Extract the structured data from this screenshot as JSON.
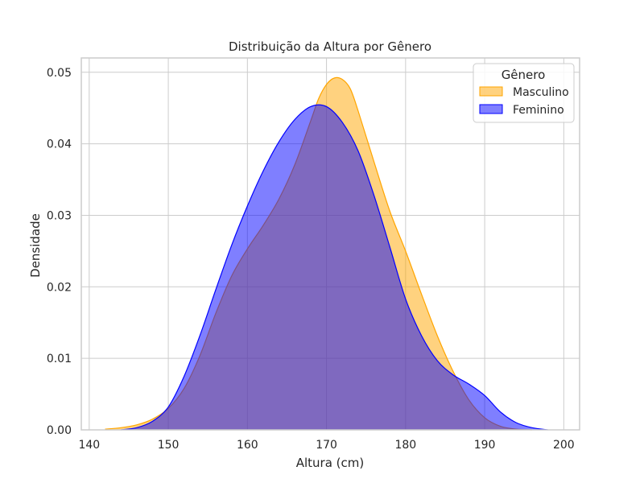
{
  "chart_data": {
    "type": "area",
    "title": "Distribuição da Altura por Gênero",
    "xlabel": "Altura (cm)",
    "ylabel": "Densidade",
    "xlim": [
      139,
      202
    ],
    "ylim": [
      0,
      0.052
    ],
    "xticks": [
      140,
      150,
      160,
      170,
      180,
      190,
      200
    ],
    "yticks": [
      0.0,
      0.01,
      0.02,
      0.03,
      0.04,
      0.05
    ],
    "xtick_labels": [
      "140",
      "150",
      "160",
      "170",
      "180",
      "190",
      "200"
    ],
    "ytick_labels": [
      "0.00",
      "0.01",
      "0.02",
      "0.03",
      "0.04",
      "0.05"
    ],
    "grid": true,
    "legend_placement": "top-right",
    "legend_title": "Gênero",
    "series": [
      {
        "name": "Masculino",
        "fill": "#ffa500",
        "fill_opacity": 0.5,
        "stroke": "#ffa500",
        "x": [
          142,
          144,
          146,
          148,
          150,
          152,
          154,
          156,
          158,
          160,
          162,
          164,
          166,
          168,
          169,
          170,
          171,
          172,
          173,
          174,
          176,
          178,
          180,
          182,
          184,
          186,
          188,
          190,
          192,
          194,
          196
        ],
        "y": [
          0.0001,
          0.0003,
          0.0007,
          0.0015,
          0.003,
          0.0058,
          0.0104,
          0.0163,
          0.0215,
          0.0253,
          0.0286,
          0.0323,
          0.0371,
          0.0432,
          0.0463,
          0.0483,
          0.0492,
          0.049,
          0.0477,
          0.0446,
          0.0375,
          0.0306,
          0.025,
          0.019,
          0.0132,
          0.0082,
          0.0042,
          0.0017,
          0.0005,
          0.0001,
          0.0
        ]
      },
      {
        "name": "Feminino",
        "fill": "#0000ff",
        "fill_opacity": 0.5,
        "stroke": "#0000ff",
        "x": [
          144,
          146,
          148,
          150,
          152,
          154,
          156,
          158,
          160,
          162,
          164,
          166,
          168,
          170,
          172,
          174,
          176,
          178,
          180,
          182,
          184,
          186,
          188,
          190,
          192,
          194,
          196,
          198
        ],
        "y": [
          0.0,
          0.0003,
          0.0012,
          0.0032,
          0.0075,
          0.0132,
          0.0196,
          0.0258,
          0.0313,
          0.0362,
          0.0403,
          0.0434,
          0.0452,
          0.0452,
          0.043,
          0.039,
          0.0328,
          0.0256,
          0.0183,
          0.0132,
          0.0097,
          0.0077,
          0.0064,
          0.0048,
          0.0025,
          0.001,
          0.0003,
          0.0
        ]
      }
    ]
  }
}
